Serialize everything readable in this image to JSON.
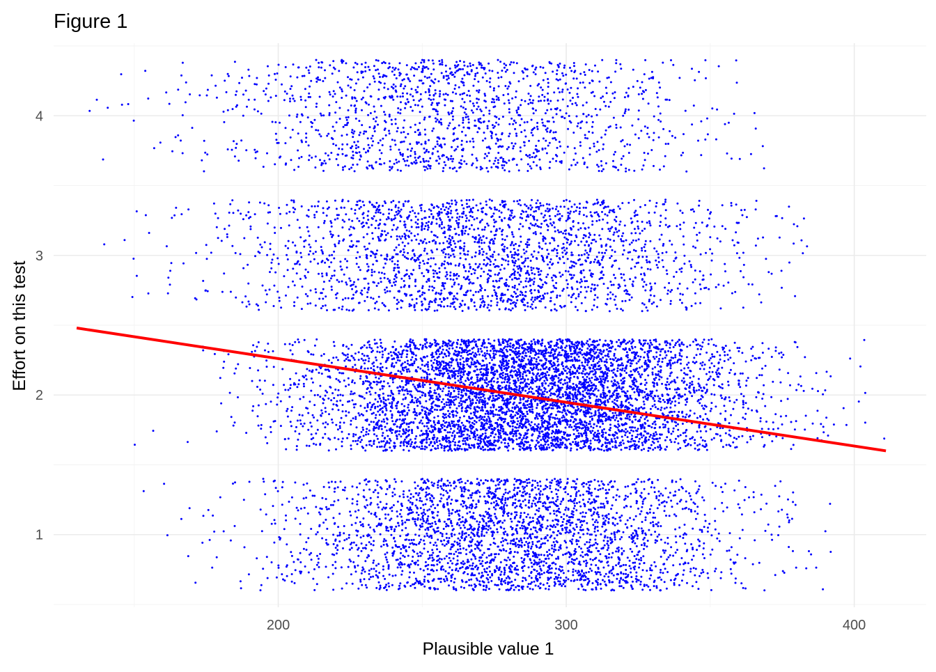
{
  "chart_data": {
    "type": "scatter",
    "title": "Figure 1",
    "xlabel": "Plausible value 1",
    "ylabel": "Effort on this test",
    "xlim": [
      122,
      425
    ],
    "ylim": [
      0.48,
      4.52
    ],
    "x_ticks": [
      200,
      300,
      400
    ],
    "y_ticks": [
      1,
      2,
      3,
      4
    ],
    "grid": true,
    "legend": "none",
    "point_color": "#0000ff",
    "trend_color": "#ff0000",
    "jitter_height": 0.4,
    "levels": [
      {
        "y": 1,
        "mean_x": 280,
        "sd_x": 38,
        "count": 2900,
        "xmin": 145,
        "xmax": 395
      },
      {
        "y": 2,
        "mean_x": 285,
        "sd_x": 38,
        "count": 5600,
        "xmin": 145,
        "xmax": 412
      },
      {
        "y": 3,
        "mean_x": 272,
        "sd_x": 42,
        "count": 2300,
        "xmin": 135,
        "xmax": 385
      },
      {
        "y": 4,
        "mean_x": 262,
        "sd_x": 42,
        "count": 1500,
        "xmin": 127,
        "xmax": 370
      }
    ],
    "trend_line": {
      "x": [
        130,
        411
      ],
      "y": [
        2.48,
        1.6
      ]
    }
  }
}
